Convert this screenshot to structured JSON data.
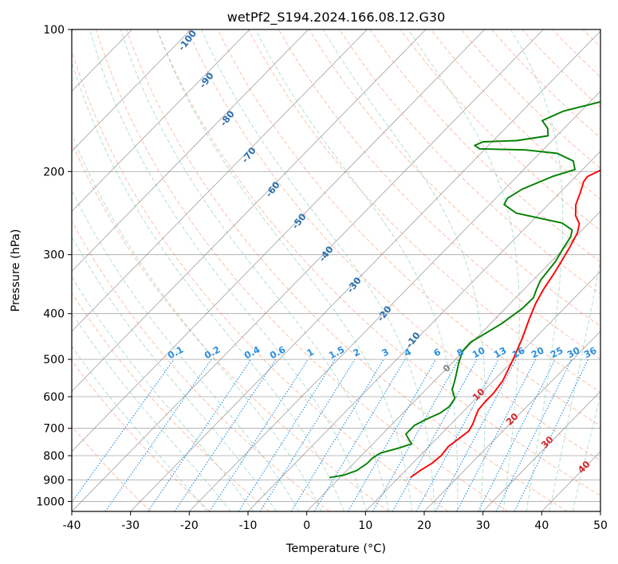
{
  "chart_data": {
    "type": "line",
    "title": "wetPf2_S194.2024.166.08.12.G30",
    "xlabel": "Temperature (°C)",
    "ylabel": "Pressure (hPa)",
    "xlim": [
      -40,
      50
    ],
    "ylim": [
      1050,
      100
    ],
    "y_scale": "log",
    "grid": true,
    "x_ticks": [
      -40,
      -30,
      -20,
      -10,
      0,
      10,
      20,
      30,
      40,
      50
    ],
    "y_ticks": [
      1000,
      900,
      800,
      700,
      600,
      500,
      400,
      300,
      200,
      100
    ],
    "series": [
      {
        "color": "#ff0000",
        "points": [
          [
            12,
            890
          ],
          [
            12.5,
            860
          ],
          [
            13.3,
            830
          ],
          [
            13.6,
            800
          ],
          [
            13.3,
            765
          ],
          [
            13.7,
            740
          ],
          [
            14.2,
            710
          ],
          [
            13.7,
            685
          ],
          [
            12.9,
            660
          ],
          [
            12.3,
            640
          ],
          [
            12.1,
            615
          ],
          [
            12.1,
            590
          ],
          [
            11.6,
            555
          ],
          [
            9.8,
            500
          ],
          [
            7.8,
            450
          ],
          [
            5.8,
            410
          ],
          [
            4.3,
            380
          ],
          [
            3.3,
            355
          ],
          [
            2.5,
            330
          ],
          [
            1.7,
            310
          ],
          [
            0.8,
            290
          ],
          [
            -0.3,
            270
          ],
          [
            -1.5,
            258
          ],
          [
            -3.5,
            248
          ],
          [
            -5.3,
            235
          ],
          [
            -6.5,
            222
          ],
          [
            -7.8,
            210
          ],
          [
            -8,
            205
          ],
          [
            -6.5,
            197
          ],
          [
            -3,
            190
          ],
          [
            1,
            180
          ],
          [
            3.9,
            170
          ],
          [
            7,
            160
          ],
          [
            9.9,
            150
          ],
          [
            12.4,
            140
          ],
          [
            14.3,
            133
          ],
          [
            14.6,
            128
          ],
          [
            15.4,
            120
          ],
          [
            16.7,
            110
          ],
          [
            18.5,
            103
          ],
          [
            19.6,
            100
          ]
        ]
      },
      {
        "color": "#008000",
        "points": [
          [
            -1.8,
            890
          ],
          [
            0.2,
            880
          ],
          [
            1.7,
            860
          ],
          [
            2.3,
            830
          ],
          [
            2.3,
            810
          ],
          [
            2.8,
            790
          ],
          [
            5.2,
            770
          ],
          [
            6.6,
            755
          ],
          [
            5.1,
            735
          ],
          [
            4,
            720
          ],
          [
            4,
            690
          ],
          [
            5,
            670
          ],
          [
            6.3,
            650
          ],
          [
            6.8,
            630
          ],
          [
            6.4,
            605
          ],
          [
            4.5,
            580
          ],
          [
            3.2,
            550
          ],
          [
            1.2,
            510
          ],
          [
            -0.2,
            480
          ],
          [
            -0.3,
            460
          ],
          [
            0.8,
            440
          ],
          [
            1.9,
            420
          ],
          [
            2.9,
            390
          ],
          [
            3,
            370
          ],
          [
            2.1,
            355
          ],
          [
            1.3,
            340
          ],
          [
            0.7,
            310
          ],
          [
            -0.2,
            290
          ],
          [
            -0.8,
            275
          ],
          [
            -1.7,
            266
          ],
          [
            -4.6,
            257
          ],
          [
            -14,
            245
          ],
          [
            -17.5,
            235
          ],
          [
            -18,
            228
          ],
          [
            -17,
            218
          ],
          [
            -14,
            205
          ],
          [
            -11.3,
            198
          ],
          [
            -13,
            190
          ],
          [
            -17,
            183
          ],
          [
            -23,
            180
          ],
          [
            -31,
            179
          ],
          [
            -32.4,
            176
          ],
          [
            -31.5,
            173
          ],
          [
            -26,
            172
          ],
          [
            -21.5,
            168
          ],
          [
            -22.8,
            162
          ],
          [
            -25,
            156
          ],
          [
            -23,
            149
          ],
          [
            -16.5,
            140
          ],
          [
            -11.5,
            133
          ],
          [
            -6.5,
            123
          ],
          [
            -2.6,
            113
          ],
          [
            0,
            105
          ],
          [
            2,
            100
          ]
        ]
      }
    ],
    "isotherm_range": [
      -130,
      50
    ],
    "dry_adiabat_labels": [
      "-100",
      "-90",
      "-80",
      "-70",
      "-60",
      "-50",
      "-40",
      "-30",
      "-20",
      "-10"
    ],
    "moist_adiabat_labels": [
      "0",
      "10",
      "20",
      "30",
      "40"
    ],
    "mixing_ratio_labels": [
      "0.1",
      "0.2",
      "0.4",
      "0.6",
      "1",
      "1.5",
      "2",
      "3",
      "4",
      "6",
      "8",
      "10",
      "13",
      "16",
      "20",
      "25",
      "30",
      "36"
    ]
  },
  "colors": {
    "dry_adiabat": "#fc8d62",
    "moist_adiabat": "#66c2a5",
    "mixing_ratio": "#1f8fe8",
    "isotherm": "#808080",
    "dry_label": "#2c6fae",
    "wet_label": "#d62728"
  }
}
